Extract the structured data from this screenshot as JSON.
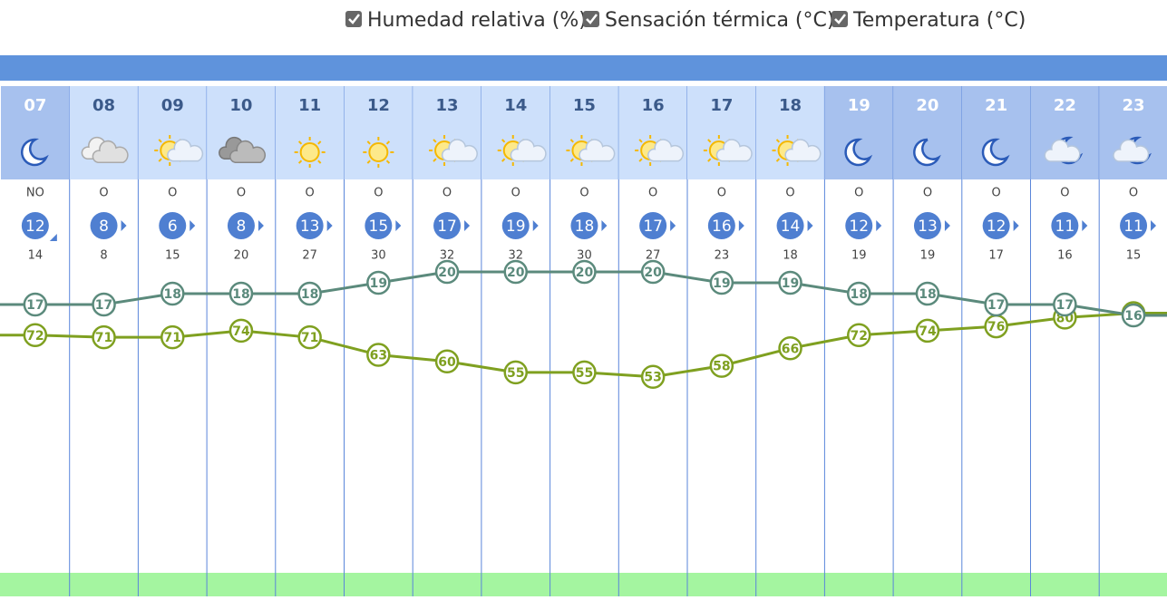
{
  "legend": [
    "Humedad relativa (%)",
    "Sensación térmica (°C)",
    "Temperatura (°C)"
  ],
  "hours": [
    {
      "hour": "07",
      "icon": "moon",
      "wind_dir": "NO",
      "wind_speed": 12,
      "gust": 14,
      "temperature": 17,
      "humidity": 72
    },
    {
      "hour": "08",
      "icon": "cloudy",
      "wind_dir": "O",
      "wind_speed": 8,
      "gust": 8,
      "temperature": 17,
      "humidity": 71
    },
    {
      "hour": "09",
      "icon": "sun-cloud",
      "wind_dir": "O",
      "wind_speed": 6,
      "gust": 15,
      "temperature": 18,
      "humidity": 71
    },
    {
      "hour": "10",
      "icon": "cloudy-dark",
      "wind_dir": "O",
      "wind_speed": 8,
      "gust": 20,
      "temperature": 18,
      "humidity": 74
    },
    {
      "hour": "11",
      "icon": "sun",
      "wind_dir": "O",
      "wind_speed": 13,
      "gust": 27,
      "temperature": 18,
      "humidity": 71
    },
    {
      "hour": "12",
      "icon": "sun",
      "wind_dir": "O",
      "wind_speed": 15,
      "gust": 30,
      "temperature": 19,
      "humidity": 63
    },
    {
      "hour": "13",
      "icon": "sun-cloud",
      "wind_dir": "O",
      "wind_speed": 17,
      "gust": 32,
      "temperature": 20,
      "humidity": 60
    },
    {
      "hour": "14",
      "icon": "sun-cloud",
      "wind_dir": "O",
      "wind_speed": 19,
      "gust": 32,
      "temperature": 20,
      "humidity": 55
    },
    {
      "hour": "15",
      "icon": "sun-cloud",
      "wind_dir": "O",
      "wind_speed": 18,
      "gust": 30,
      "temperature": 20,
      "humidity": 55
    },
    {
      "hour": "16",
      "icon": "sun-cloud",
      "wind_dir": "O",
      "wind_speed": 17,
      "gust": 27,
      "temperature": 20,
      "humidity": 53
    },
    {
      "hour": "17",
      "icon": "sun-cloud",
      "wind_dir": "O",
      "wind_speed": 16,
      "gust": 23,
      "temperature": 19,
      "humidity": 58
    },
    {
      "hour": "18",
      "icon": "sun-cloud",
      "wind_dir": "O",
      "wind_speed": 14,
      "gust": 18,
      "temperature": 19,
      "humidity": 66
    },
    {
      "hour": "19",
      "icon": "moon",
      "wind_dir": "O",
      "wind_speed": 12,
      "gust": 19,
      "temperature": 18,
      "humidity": 72
    },
    {
      "hour": "20",
      "icon": "moon",
      "wind_dir": "O",
      "wind_speed": 13,
      "gust": 19,
      "temperature": 18,
      "humidity": 74
    },
    {
      "hour": "21",
      "icon": "moon",
      "wind_dir": "O",
      "wind_speed": 12,
      "gust": 17,
      "temperature": 17,
      "humidity": 76
    },
    {
      "hour": "22",
      "icon": "moon-cloud",
      "wind_dir": "O",
      "wind_speed": 11,
      "gust": 16,
      "temperature": 17,
      "humidity": 80
    },
    {
      "hour": "23",
      "icon": "moon-cloud",
      "wind_dir": "O",
      "wind_speed": 11,
      "gust": 15,
      "temperature": 16,
      "humidity": 82
    }
  ],
  "temperature_color": "#5b8a7c",
  "humidity_color": "#7fa020"
}
